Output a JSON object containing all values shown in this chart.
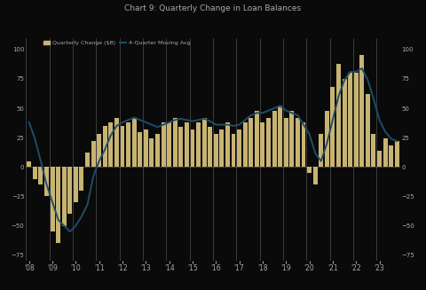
{
  "title": "Chart 9: Quarterly Change in Loan Balances",
  "bar_color": "#c8b472",
  "line_color": "#1e4d6b",
  "background_color": "#0a0a0a",
  "plot_bg_color": "#0a0a0a",
  "text_color": "#aaaaaa",
  "grid_color": "#ffffff",
  "legend_bar_label": "Quarterly Change ($B)",
  "legend_line_label": "4-Quarter Moving Avg",
  "bar_values": [
    5,
    -10,
    -15,
    -25,
    -55,
    -65,
    -50,
    -40,
    -30,
    -20,
    12,
    22,
    28,
    35,
    38,
    42,
    35,
    38,
    42,
    30,
    32,
    24,
    28,
    38,
    38,
    42,
    34,
    38,
    32,
    38,
    42,
    34,
    28,
    32,
    38,
    28,
    32,
    38,
    42,
    48,
    38,
    42,
    48,
    52,
    42,
    48,
    42,
    38,
    -5,
    -15,
    28,
    48,
    68,
    88,
    75,
    80,
    80,
    95,
    62,
    28,
    14,
    24,
    18,
    22
  ],
  "line_values": [
    38,
    24,
    5,
    -15,
    -30,
    -45,
    -50,
    -55,
    -50,
    -42,
    -32,
    -8,
    5,
    15,
    27,
    35,
    38,
    40,
    42,
    40,
    38,
    36,
    34,
    36,
    38,
    40,
    41,
    40,
    39,
    40,
    41,
    39,
    36,
    36,
    36,
    35,
    36,
    40,
    44,
    46,
    46,
    48,
    50,
    52,
    48,
    46,
    44,
    36,
    28,
    12,
    5,
    20,
    40,
    60,
    74,
    81,
    81,
    84,
    74,
    58,
    40,
    30,
    24,
    22
  ],
  "ylim": [
    -80,
    110
  ],
  "yticks": [
    -75,
    -50,
    -25,
    0,
    25,
    50,
    75,
    100
  ],
  "year_labels": [
    "'08",
    "'09",
    "'10",
    "'11",
    "'12",
    "'13",
    "'14",
    "'15",
    "'16",
    "'17",
    "'18",
    "'19",
    "'20",
    "'21",
    "'22",
    "'23"
  ],
  "figsize": [
    4.8,
    3.27
  ],
  "dpi": 100
}
